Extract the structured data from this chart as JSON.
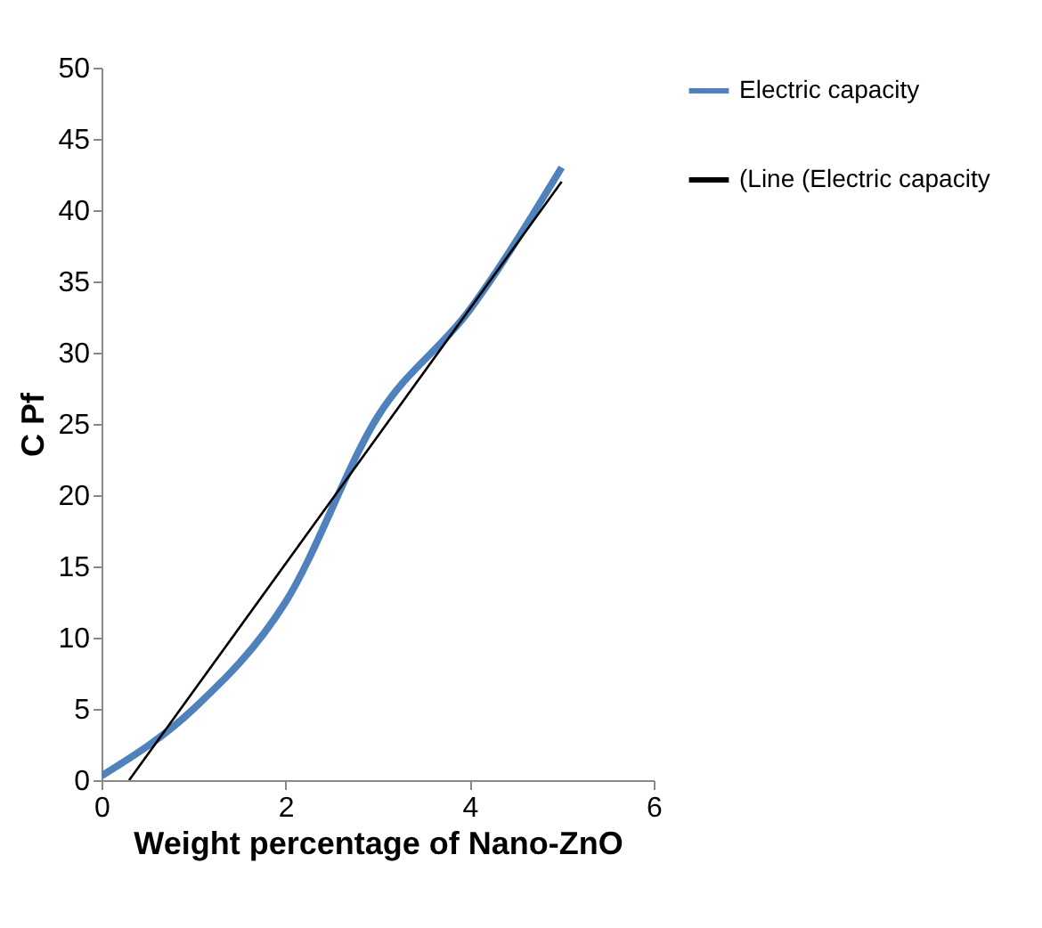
{
  "chart_data": {
    "type": "line",
    "xlabel": "Weight percentage of Nano-ZnO",
    "ylabel": "C Pf",
    "x": [
      0,
      1,
      2,
      3,
      4,
      5
    ],
    "series": [
      {
        "name": "Electric capacity",
        "color": "#4f81bd",
        "values": [
          0.3,
          5,
          12.5,
          25.5,
          33,
          43
        ]
      },
      {
        "name": "(Line (Electric capacity",
        "color": "#000000",
        "x": [
          0.3,
          5
        ],
        "values": [
          0,
          42
        ]
      }
    ],
    "xlim": [
      0,
      6
    ],
    "xticks": [
      0,
      2,
      4,
      6
    ],
    "ylim": [
      0,
      50
    ],
    "yticks": [
      0,
      5,
      10,
      15,
      20,
      25,
      30,
      35,
      40,
      45,
      50
    ],
    "grid": false,
    "legend": "right",
    "line_style": "solid",
    "marker": "none"
  }
}
